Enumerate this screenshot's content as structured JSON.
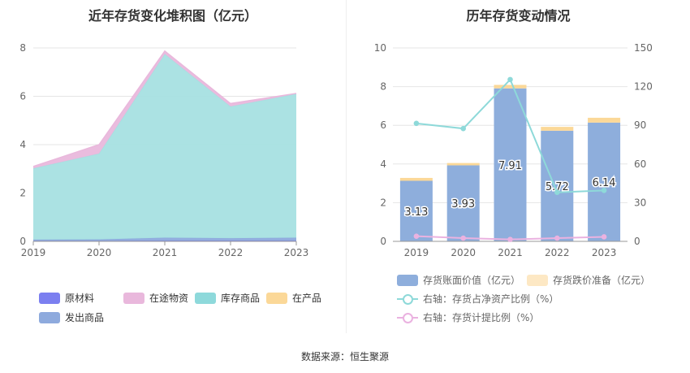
{
  "source": "数据来源：恒生聚源",
  "chart_data": [
    {
      "type": "area",
      "stacked": true,
      "title": "近年存货变化堆积图（亿元）",
      "categories": [
        "2019",
        "2020",
        "2021",
        "2022",
        "2023"
      ],
      "ylim": [
        0,
        8
      ],
      "yticks": [
        "0",
        "2",
        "4",
        "6",
        "8"
      ],
      "grid": true,
      "legend_position": "bottom",
      "series": [
        {
          "name": "原材料",
          "color": "#7b7ff0",
          "values": [
            0.02,
            0.02,
            0.03,
            0.03,
            0.03
          ]
        },
        {
          "name": "发出商品",
          "color": "#8eaadd",
          "values": [
            0.05,
            0.06,
            0.12,
            0.1,
            0.12
          ]
        },
        {
          "name": "库存商品",
          "color": "#a6e0e1",
          "values": [
            2.95,
            3.55,
            7.6,
            5.45,
            5.95
          ]
        },
        {
          "name": "在产品",
          "color": "#fbd898",
          "values": [
            0.0,
            0.0,
            0.0,
            0.0,
            0.0
          ]
        },
        {
          "name": "在途物资",
          "color": "#e9b8dc",
          "values": [
            0.08,
            0.37,
            0.12,
            0.12,
            0.02
          ]
        }
      ],
      "legend_items": [
        {
          "name": "原材料",
          "color": "#7b7ff0"
        },
        {
          "name": "在途物资",
          "color": "#e9b8dc"
        },
        {
          "name": "库存商品",
          "color": "#8ed9db"
        },
        {
          "name": "在产品",
          "color": "#fbd898"
        },
        {
          "name": "发出商品",
          "color": "#8eaadd"
        }
      ]
    },
    {
      "type": "bar",
      "stacked": true,
      "title": "历年存货变动情况",
      "categories": [
        "2019",
        "2020",
        "2021",
        "2022",
        "2023"
      ],
      "ylim": [
        0,
        10
      ],
      "yticks": [
        "0",
        "2",
        "4",
        "6",
        "8",
        "10"
      ],
      "y2lim": [
        0,
        150
      ],
      "y2ticks": [
        "0",
        "30",
        "60",
        "90",
        "120",
        "150"
      ],
      "grid": true,
      "legend_position": "bottom",
      "series": [
        {
          "name": "存货账面价值（亿元）",
          "color": "#8eaedc",
          "values": [
            3.13,
            3.93,
            7.91,
            5.72,
            6.14
          ],
          "labels": [
            "3.13",
            "3.93",
            "7.91",
            "5.72",
            "6.14"
          ]
        },
        {
          "name": "存货跌价准备（亿元）",
          "color": "#fbd898",
          "values": [
            0.15,
            0.12,
            0.18,
            0.2,
            0.25
          ]
        }
      ],
      "line_series": [
        {
          "name": "右轴：存货占净资产比例（%）",
          "color": "#8ed9d9",
          "axis": "right",
          "values": [
            91.5,
            87.5,
            125.5,
            38.0,
            39.5
          ]
        },
        {
          "name": "右轴：存货计提比例（%）",
          "color": "#eab2e0",
          "axis": "right",
          "values": [
            4.0,
            2.5,
            1.5,
            2.5,
            3.5
          ]
        }
      ]
    }
  ]
}
